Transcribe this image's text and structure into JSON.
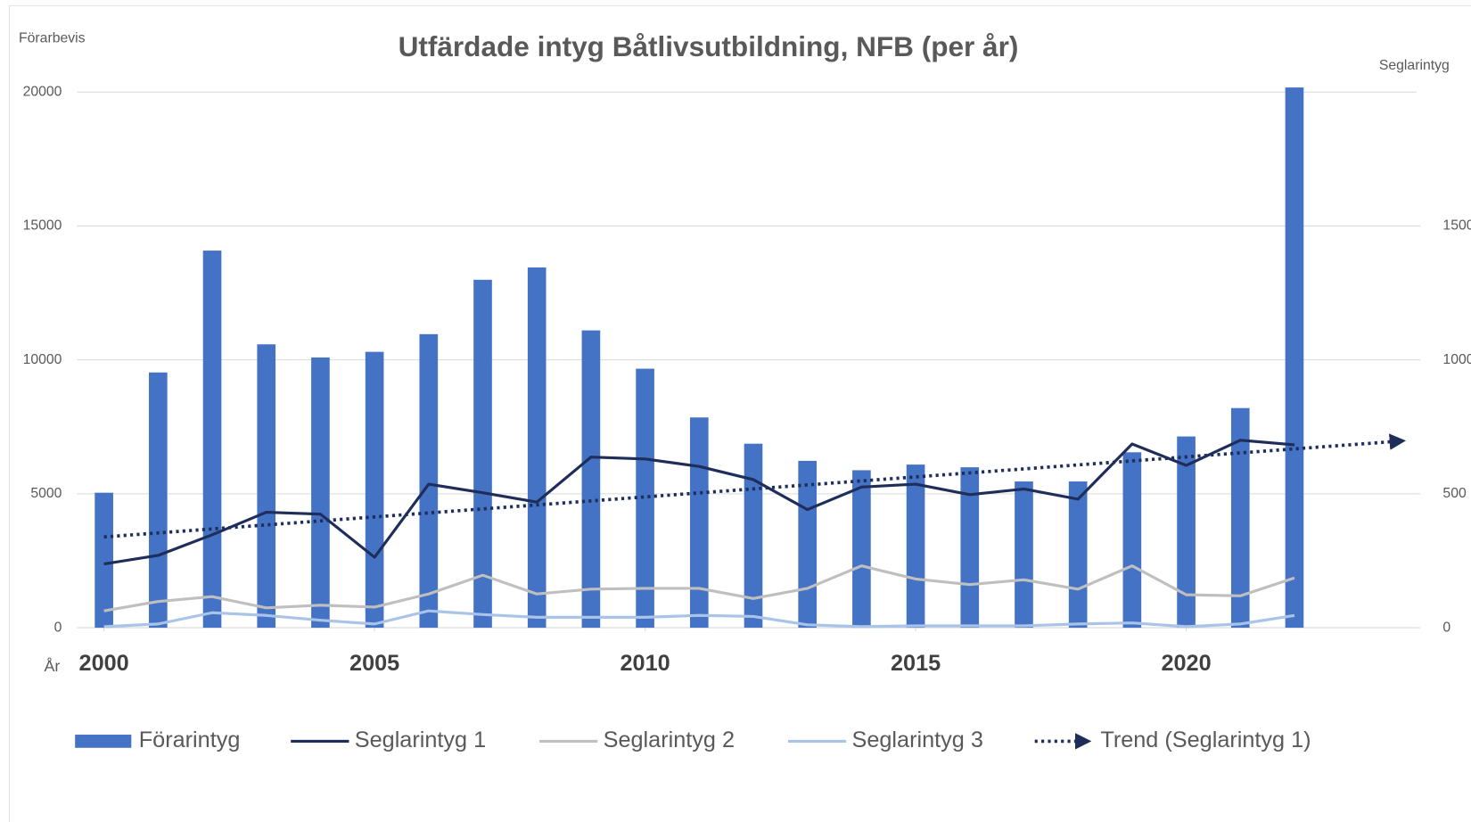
{
  "chart_data": {
    "type": "bar",
    "title": "Utfärdade intyg Båtlivsutbildning, NFB (per år)",
    "y_label": "Förarbevis",
    "y2_label": "Seglarintyg",
    "x_label": "År",
    "x": [
      2000,
      2001,
      2002,
      2003,
      2004,
      2005,
      2006,
      2007,
      2008,
      2009,
      2010,
      2011,
      2012,
      2013,
      2014,
      2015,
      2016,
      2017,
      2018,
      2019,
      2020,
      2021,
      2022
    ],
    "xlim": [
      1999.5,
      2024.5
    ],
    "xticks": [
      2000,
      2005,
      2010,
      2015,
      2020
    ],
    "ylim": [
      0,
      20000
    ],
    "yticks": [
      0,
      5000,
      10000,
      15000,
      20000
    ],
    "y2lim": [
      0,
      2000
    ],
    "y2ticks": [
      0,
      500,
      1000,
      1500
    ],
    "grid": true,
    "legend": "bottom",
    "series": [
      {
        "name": "Förarintyg",
        "type": "bar",
        "color": "#4472c4",
        "values": [
          5040,
          9530,
          14080,
          10580,
          10090,
          10300,
          10960,
          12990,
          13450,
          11100,
          9670,
          7850,
          6870,
          6230,
          5880,
          6090,
          5990,
          5460,
          5460,
          6550,
          7140,
          8200,
          20170
        ]
      },
      {
        "name": "Seglarintyg 1",
        "type": "line",
        "axis": "y2",
        "color": "#1f2d5a",
        "values": [
          238,
          270,
          347,
          431,
          424,
          263,
          536,
          504,
          469,
          637,
          630,
          602,
          553,
          441,
          525,
          536,
          497,
          518,
          480,
          686,
          606,
          700,
          683
        ]
      },
      {
        "name": "Seglarintyg 2",
        "type": "line",
        "axis": "y2",
        "color": "#bfbfbf",
        "values": [
          63,
          98,
          116,
          74,
          84,
          77,
          126,
          196,
          126,
          144,
          147,
          147,
          109,
          147,
          231,
          182,
          161,
          179,
          144,
          231,
          123,
          119,
          186
        ]
      },
      {
        "name": "Seglarintyg 3",
        "type": "line",
        "axis": "y2",
        "color": "#a9c4e8",
        "values": [
          4,
          14,
          56,
          46,
          28,
          14,
          63,
          49,
          39,
          39,
          39,
          46,
          42,
          11,
          4,
          7,
          7,
          7,
          14,
          18,
          4,
          14,
          46
        ]
      }
    ],
    "trend": {
      "name": "Trend (Seglarintyg 1)",
      "of": 1,
      "forward": 2,
      "color": "#1f2d5a"
    }
  }
}
